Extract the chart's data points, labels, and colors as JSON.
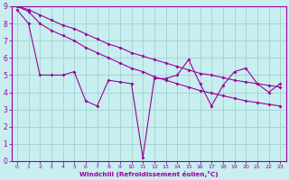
{
  "line1_x": [
    0,
    1,
    2,
    3,
    4,
    5,
    6,
    7,
    8,
    9,
    10,
    11,
    12,
    13,
    14,
    15,
    16,
    17,
    18,
    19,
    20,
    21,
    22,
    23
  ],
  "line1_y": [
    9.0,
    8.7,
    8.0,
    7.6,
    7.3,
    7.0,
    6.6,
    6.3,
    6.0,
    5.7,
    5.4,
    5.2,
    4.9,
    4.7,
    4.5,
    4.3,
    4.1,
    3.95,
    3.8,
    3.65,
    3.5,
    3.4,
    3.3,
    3.2
  ],
  "line2_x": [
    0,
    1,
    2,
    3,
    4,
    5,
    6,
    7,
    8,
    9,
    10,
    11,
    12,
    13,
    14,
    15,
    16,
    17,
    18,
    19,
    20,
    21,
    22,
    23
  ],
  "line2_y": [
    9.0,
    8.8,
    8.5,
    8.2,
    7.9,
    7.7,
    7.4,
    7.1,
    6.8,
    6.6,
    6.3,
    6.1,
    5.9,
    5.7,
    5.5,
    5.3,
    5.1,
    5.0,
    4.85,
    4.7,
    4.6,
    4.5,
    4.4,
    4.3
  ],
  "line3_x": [
    0,
    1,
    2,
    3,
    4,
    5,
    6,
    7,
    8,
    9,
    10,
    11,
    12,
    13,
    14,
    15,
    16,
    17,
    18,
    19,
    20,
    21,
    22,
    23
  ],
  "line3_y": [
    8.8,
    8.0,
    5.0,
    5.0,
    5.0,
    5.2,
    3.5,
    3.2,
    4.7,
    4.6,
    4.5,
    0.2,
    4.8,
    4.8,
    5.0,
    5.9,
    4.5,
    3.2,
    4.4,
    5.2,
    5.4,
    4.5,
    4.0,
    4.5
  ],
  "line_color": "#990099",
  "bg_color": "#c8eef0",
  "grid_color": "#99cccc",
  "xlabel": "Windchill (Refroidissement éolien,°C)",
  "xlim": [
    -0.5,
    23.5
  ],
  "ylim": [
    0,
    9
  ],
  "xticks": [
    0,
    1,
    2,
    3,
    4,
    5,
    6,
    7,
    8,
    9,
    10,
    11,
    12,
    13,
    14,
    15,
    16,
    17,
    18,
    19,
    20,
    21,
    22,
    23
  ],
  "yticks": [
    0,
    1,
    2,
    3,
    4,
    5,
    6,
    7,
    8,
    9
  ]
}
